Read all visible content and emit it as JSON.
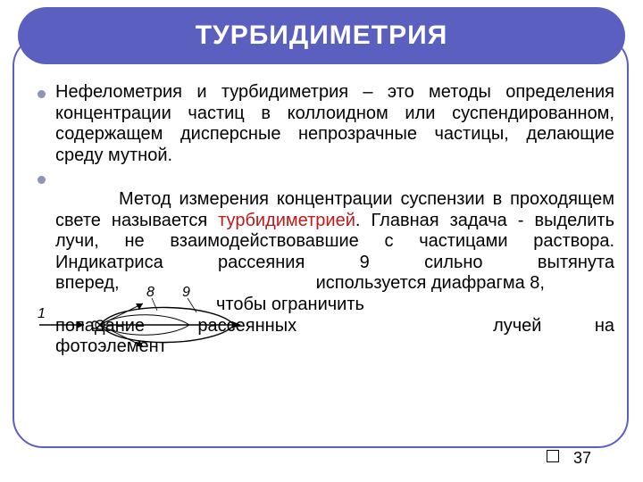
{
  "title": "ТУРБИДИМЕТРИЯ",
  "title_fontsize": 30,
  "title_color": "#ffffff",
  "title_band_color": "#5a5fc0",
  "frame_border_color": "#5a5fc0",
  "frame_border_width": 2,
  "body_fontsize": 20,
  "body_line_height": 1.18,
  "bullet_color": "#8f93b6",
  "highlight_color": "#c01818",
  "text_color": "#000000",
  "page_number": "37",
  "page_number_fontsize": 18,
  "bullets": [
    {
      "text_before": "Нефелометрия и турбидиметрия – это методы определения концентрации частиц в коллоидном или суспендированном, содержащем дисперсные непрозрачные частицы, делающие среду мутной.",
      "highlight": "",
      "text_after": ""
    },
    {
      "text_before": "Метод измерения концентрации суспензии в проходящем свете называется ",
      "highlight": "турбидиметрией",
      "text_after": ". Главная задача - выделить лучи, не взаимодействовавшие с частицами раствора. Индикатриса рассеяния 9 сильно вытянута вперед,           используется диафрагма 8,\n         чтобы ограничить\nпопадание рассеянных           лучей на фотоэлемент"
    }
  ],
  "diagram": {
    "label_1": "1",
    "label_8": "8",
    "label_9": "9",
    "stroke": "#000000",
    "fill": "#ffffff"
  }
}
